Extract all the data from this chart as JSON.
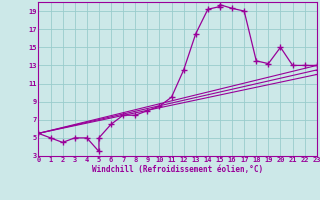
{
  "xlabel": "Windchill (Refroidissement éolien,°C)",
  "background_color": "#cce8e8",
  "line_color": "#990099",
  "xlim": [
    0,
    23
  ],
  "ylim": [
    3,
    20
  ],
  "xticks": [
    0,
    1,
    2,
    3,
    4,
    5,
    6,
    7,
    8,
    9,
    10,
    11,
    12,
    13,
    14,
    15,
    16,
    17,
    18,
    19,
    20,
    21,
    22,
    23
  ],
  "yticks": [
    3,
    5,
    7,
    9,
    11,
    13,
    15,
    17,
    19
  ],
  "grid_color": "#99cccc",
  "series": [
    {
      "x": [
        0,
        1,
        2,
        3,
        4,
        5,
        5,
        6,
        7,
        8,
        9,
        10,
        11,
        12,
        13,
        14,
        15,
        15,
        16,
        17,
        18,
        19,
        20,
        21,
        22,
        23
      ],
      "y": [
        5.5,
        5,
        4.5,
        5,
        5,
        3.5,
        5,
        6.5,
        7.5,
        7.5,
        8,
        8.5,
        9.5,
        12.5,
        16.5,
        19.2,
        19.5,
        19.7,
        19.3,
        19,
        13.5,
        13.2,
        15,
        13,
        13,
        13
      ]
    },
    {
      "x": [
        0,
        23
      ],
      "y": [
        5.5,
        13
      ]
    },
    {
      "x": [
        0,
        23
      ],
      "y": [
        5.5,
        13
      ]
    },
    {
      "x": [
        0,
        23
      ],
      "y": [
        5.5,
        13
      ]
    }
  ],
  "straight_lines": [
    {
      "x": [
        0,
        23
      ],
      "y": [
        5.5,
        13.0
      ]
    },
    {
      "x": [
        0,
        23
      ],
      "y": [
        5.5,
        12.5
      ]
    },
    {
      "x": [
        0,
        23
      ],
      "y": [
        5.5,
        12.0
      ]
    }
  ]
}
